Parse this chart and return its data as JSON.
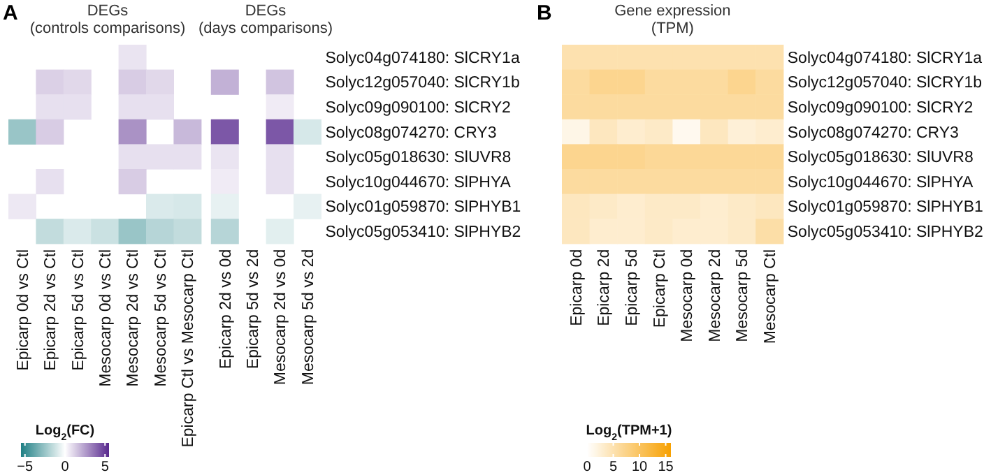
{
  "chart_data": [
    {
      "type": "heatmap",
      "annotations": [
        "A",
        "DEGs (controls comparisons)",
        "DEGs (days comparisons)"
      ],
      "clabel": "Log$_{2}$(FC)",
      "clim": [
        -5.5,
        5.5
      ],
      "cticks": [
        -5,
        0,
        5
      ],
      "categories": [
        "Epicarp 0d vs Ctl",
        "Epicarp 2d vs Ctl",
        "Epicarp 5d vs Ctl",
        "Mesocarp 0d vs Ctl",
        "Mesocarp 2d vs Ctl",
        "Mesocarp 5d vs Ctl",
        "Epicarp Ctl vs Mesocarp Ctl",
        "Epicarp 2d vs 0d",
        "Epicarp 5d vs 2d",
        "Mesocarp 2d vs 0d",
        "Mesocarp 5d vs 2d"
      ],
      "y_categories": [
        "Solyc04g074180: SlCRY1a",
        "Solyc12g057040: SlCRY1b",
        "Solyc09g090100: SlCRY2",
        "Solyc08g074270: CRY3",
        "Solyc05g018630: SlUVR8",
        "Solyc10g044670: SlPHYA",
        "Solyc01g059870: SlPHYB1",
        "Solyc05g053410: SlPHYB2"
      ],
      "cells": [
        [
          null,
          null,
          null,
          null,
          0.7,
          null,
          null,
          null,
          null,
          null,
          null
        ],
        [
          null,
          1.2,
          1,
          null,
          1.3,
          1,
          null,
          2,
          null,
          1.5,
          null
        ],
        [
          null,
          0.8,
          0.8,
          null,
          0.8,
          0.8,
          null,
          null,
          null,
          0.5,
          null
        ],
        [
          -2.5,
          1.3,
          null,
          null,
          2.8,
          null,
          1.8,
          4.3,
          null,
          4.3,
          -1
        ],
        [
          null,
          null,
          null,
          null,
          0.8,
          0.8,
          0.8,
          0.7,
          null,
          0.8,
          null
        ],
        [
          null,
          0.8,
          null,
          null,
          1.3,
          null,
          null,
          0.5,
          null,
          0.8,
          null
        ],
        [
          0.6,
          null,
          null,
          null,
          null,
          -0.9,
          -1,
          -0.6,
          null,
          null,
          -0.6
        ],
        [
          null,
          -1.5,
          -0.9,
          -1.3,
          -2.5,
          -1.8,
          -1.5,
          -1.8,
          null,
          -0.7,
          null
        ]
      ]
    },
    {
      "type": "heatmap",
      "title": "Gene expression",
      "subtitle": "(TPM)",
      "annotations": [
        "B"
      ],
      "clabel": "Log$_{2}$(TPM+1)",
      "clim": [
        0,
        16
      ],
      "cticks": [
        0,
        5,
        10,
        15
      ],
      "categories": [
        "Epicarp 0d",
        "Epicarp 2d",
        "Epicarp 5d",
        "Epicarp Ctl",
        "Mesocarp 0d",
        "Mesocarp 2d",
        "Mesocarp 5d",
        "Mesocarp Ctl"
      ],
      "y_categories": [
        "Solyc04g074180: SlCRY1a",
        "Solyc12g057040: SlCRY1b",
        "Solyc09g090100: SlCRY2",
        "Solyc08g074270: CRY3",
        "Solyc05g018630: SlUVR8",
        "Solyc10g044670: SlPHYA",
        "Solyc01g059870: SlPHYB1",
        "Solyc05g053410: SlPHYB2"
      ],
      "cells": [
        [
          5,
          5,
          5,
          5,
          5,
          5,
          5,
          5
        ],
        [
          6,
          7,
          7,
          6,
          6,
          6,
          7,
          6
        ],
        [
          6,
          6,
          6,
          6,
          6,
          6,
          6,
          6
        ],
        [
          1.5,
          4,
          3,
          3.5,
          1,
          4,
          2.5,
          3
        ],
        [
          7,
          7,
          7,
          6.5,
          6.5,
          6.5,
          6.5,
          6.5
        ],
        [
          6,
          6,
          6,
          6,
          6,
          6,
          6,
          6
        ],
        [
          4,
          3.5,
          3,
          3.5,
          3.5,
          3,
          3.5,
          4
        ],
        [
          4,
          3,
          3,
          3.5,
          3,
          3,
          3.5,
          5.5
        ]
      ]
    }
  ]
}
